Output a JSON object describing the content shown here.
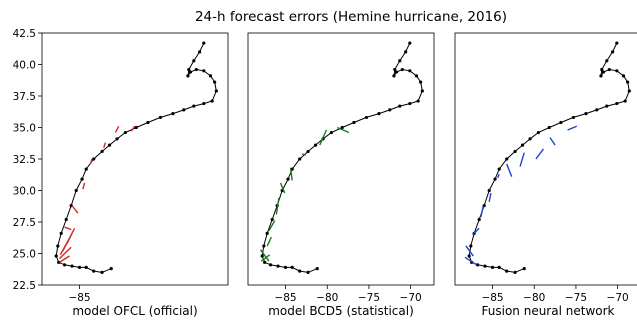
{
  "chart_data": {
    "type": "line",
    "title": "24-h forecast errors (Hemine hurricane, 2016)",
    "ylim": [
      22.5,
      42.5
    ],
    "yticks": [
      "22.5",
      "25.0",
      "27.5",
      "30.0",
      "32.5",
      "35.0",
      "37.5",
      "40.0",
      "42.5"
    ],
    "xlim": [
      -89.5,
      -67.2
    ],
    "grid": false,
    "track": {
      "name": "best track",
      "color": "#000000",
      "points": [
        [
          -81.2,
          23.8
        ],
        [
          -82.3,
          23.5
        ],
        [
          -83.3,
          23.6
        ],
        [
          -84.2,
          23.9
        ],
        [
          -85.0,
          23.9
        ],
        [
          -85.9,
          24.0
        ],
        [
          -86.8,
          24.1
        ],
        [
          -87.5,
          24.3
        ],
        [
          -87.8,
          24.8
        ],
        [
          -87.6,
          25.6
        ],
        [
          -87.2,
          26.6
        ],
        [
          -86.6,
          27.7
        ],
        [
          -86.0,
          28.8
        ],
        [
          -85.4,
          30.0
        ],
        [
          -84.7,
          30.9
        ],
        [
          -84.2,
          31.7
        ],
        [
          -83.3,
          32.5
        ],
        [
          -82.3,
          33.1
        ],
        [
          -81.4,
          33.6
        ],
        [
          -80.5,
          34.1
        ],
        [
          -79.5,
          34.6
        ],
        [
          -78.2,
          35.0
        ],
        [
          -76.8,
          35.4
        ],
        [
          -75.3,
          35.8
        ],
        [
          -73.8,
          36.1
        ],
        [
          -72.5,
          36.4
        ],
        [
          -71.3,
          36.7
        ],
        [
          -70.1,
          36.9
        ],
        [
          -69.1,
          37.1
        ],
        [
          -68.6,
          37.9
        ],
        [
          -68.8,
          38.6
        ],
        [
          -69.3,
          39.1
        ],
        [
          -70.1,
          39.5
        ],
        [
          -71.0,
          39.6
        ],
        [
          -71.7,
          39.4
        ],
        [
          -72.0,
          39.1
        ],
        [
          -71.9,
          39.6
        ],
        [
          -71.3,
          40.3
        ],
        [
          -70.6,
          41.0
        ],
        [
          -70.1,
          41.7
        ]
      ]
    },
    "panels": [
      {
        "name": "model OFCL (official)",
        "color": "#d62728",
        "xticks": [
          "−85"
        ],
        "xtick_values": [
          -85
        ],
        "errors": [
          [
            -87.4,
            24.3,
            -86.2,
            24.8
          ],
          [
            -87.4,
            24.6,
            -86.0,
            25.5
          ],
          [
            -87.3,
            24.9,
            -86.3,
            26.1
          ],
          [
            -87.0,
            25.2,
            -85.9,
            26.6
          ],
          [
            -86.5,
            25.8,
            -85.6,
            27.0
          ],
          [
            -86.0,
            26.9,
            -86.8,
            27.1
          ],
          [
            -85.2,
            28.2,
            -85.9,
            28.8
          ],
          [
            -84.6,
            30.1,
            -84.4,
            30.6
          ],
          [
            -83.7,
            32.1,
            -83.5,
            32.5
          ],
          [
            -82.1,
            33.4,
            -81.9,
            33.8
          ],
          [
            -80.7,
            34.6,
            -80.3,
            35.1
          ],
          [
            -78.8,
            34.7,
            -78.4,
            35.1
          ]
        ]
      },
      {
        "name": "model BCD5 (statistical)",
        "color": "#1a7a1a",
        "xticks": [
          "−85",
          "−80",
          "−75",
          "−70"
        ],
        "xtick_values": [
          -85,
          -80,
          -75,
          -70
        ],
        "errors": [
          [
            -87.9,
            24.4,
            -86.9,
            24.9
          ],
          [
            -88.0,
            25.3,
            -87.0,
            24.4
          ],
          [
            -87.2,
            25.6,
            -86.7,
            26.3
          ],
          [
            -87.0,
            26.8,
            -86.3,
            27.6
          ],
          [
            -86.1,
            28.1,
            -85.8,
            29.4
          ],
          [
            -85.1,
            29.8,
            -85.6,
            30.6
          ],
          [
            -84.2,
            30.8,
            -84.4,
            31.8
          ],
          [
            -82.6,
            32.8,
            -83.0,
            32.9
          ],
          [
            -80.9,
            33.6,
            -80.1,
            34.8
          ],
          [
            -78.8,
            35.0,
            -77.4,
            34.6
          ]
        ]
      },
      {
        "name": "Fusion neural network",
        "color": "#1f3fd0",
        "xticks": [
          "−85",
          "−80",
          "−75",
          "−70"
        ],
        "xtick_values": [
          -85,
          -80,
          -75,
          -70
        ],
        "errors": [
          [
            -88.3,
            24.7,
            -86.9,
            24.1
          ],
          [
            -88.2,
            25.6,
            -87.3,
            24.8
          ],
          [
            -87.4,
            26.5,
            -86.6,
            27.0
          ],
          [
            -86.4,
            27.9,
            -86.1,
            28.8
          ],
          [
            -85.4,
            29.1,
            -85.2,
            29.8
          ],
          [
            -84.4,
            31.0,
            -84.2,
            31.3
          ],
          [
            -83.3,
            32.1,
            -82.7,
            31.1
          ],
          [
            -81.7,
            31.9,
            -81.2,
            33.0
          ],
          [
            -79.8,
            32.5,
            -78.9,
            33.3
          ],
          [
            -78.1,
            34.2,
            -77.5,
            33.6
          ],
          [
            -76.0,
            34.8,
            -74.9,
            35.1
          ]
        ]
      }
    ],
    "y_axis_panel": 0
  }
}
